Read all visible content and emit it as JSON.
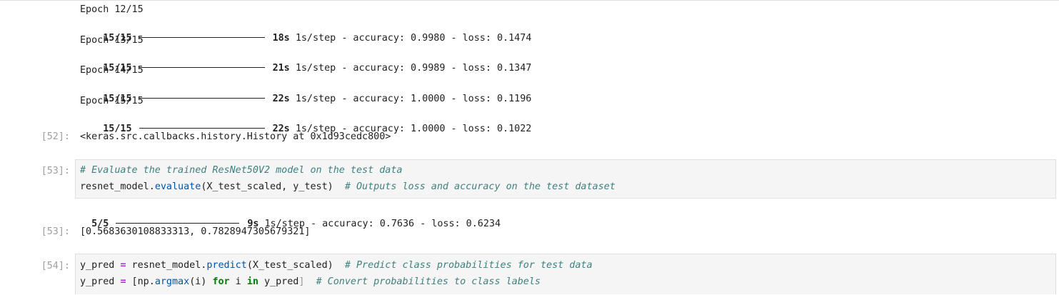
{
  "training_log": [
    {
      "epoch": "Epoch 12/15",
      "steps": "15/15",
      "time": "18s",
      "rate": "1s/step",
      "metrics": "- accuracy: 0.9980 - loss: 0.1474"
    },
    {
      "epoch": "Epoch 13/15",
      "steps": "15/15",
      "time": "21s",
      "rate": "1s/step",
      "metrics": "- accuracy: 0.9989 - loss: 0.1347"
    },
    {
      "epoch": "Epoch 14/15",
      "steps": "15/15",
      "time": "22s",
      "rate": "1s/step",
      "metrics": "- accuracy: 1.0000 - loss: 0.1196"
    },
    {
      "epoch": "Epoch 15/15",
      "steps": "15/15",
      "time": "22s",
      "rate": "1s/step",
      "metrics": "- accuracy: 1.0000 - loss: 0.1022"
    }
  ],
  "cell52": {
    "prompt": "[52]:",
    "output": "<keras.src.callbacks.history.History at 0x1d93cedc800>"
  },
  "cell53": {
    "prompt": "[53]:",
    "code_line1_comment": "# Evaluate the trained ResNet50V2 model on the test data",
    "code_line2_obj": "resnet_model.",
    "code_line2_method": "evaluate",
    "code_line2_args": "(X_test_scaled, y_test)  ",
    "code_line2_comment": "# Outputs loss and accuracy on the test dataset",
    "progress_steps": "5/5",
    "progress_time": "9s",
    "progress_rate": "1s/step",
    "progress_metrics": "- accuracy: 0.7636 - loss: 0.6234",
    "output_prompt": "[53]:",
    "output": "[0.5683630108833313, 0.7828947305679321]"
  },
  "cell54": {
    "prompt": "[54]:",
    "line1_var": "y_pred ",
    "line1_eq": "=",
    "line1_obj": " resnet_model.",
    "line1_method": "predict",
    "line1_args": "(X_test_scaled)  ",
    "line1_comment": "# Predict class probabilities for test data",
    "line2_var": "y_pred ",
    "line2_eq": "=",
    "line2_open": " [",
    "line2_call": "np.",
    "line2_method": "argmax",
    "line2_argi": "(i) ",
    "line2_for": "for",
    "line2_i": " i ",
    "line2_in": "in",
    "line2_rest": " y_pred",
    "line2_close": "]",
    "line2_gap": "  ",
    "line2_comment": "# Convert probabilities to class labels"
  }
}
